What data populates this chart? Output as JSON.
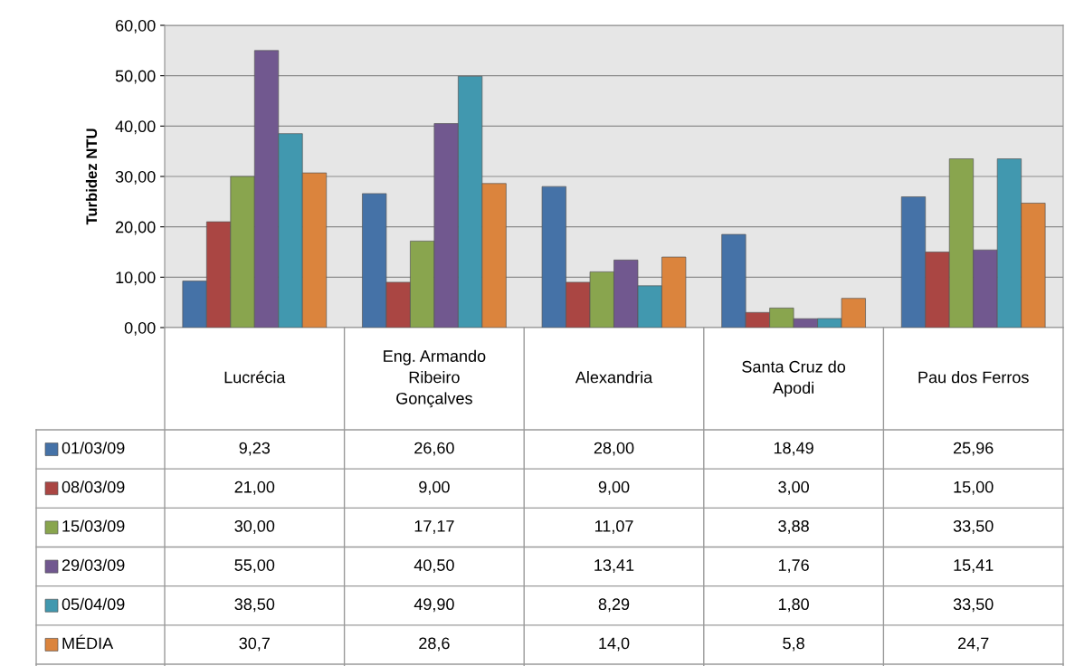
{
  "chart_data": {
    "type": "bar",
    "ylabel": "Turbidez NTU",
    "categories": [
      "Lucrécia",
      "Eng. Armando\nRibeiro\nGonçalves",
      "Alexandria",
      "Santa Cruz do\nApodi",
      "Pau dos Ferros"
    ],
    "series": [
      {
        "name": "01/03/09",
        "color": "#4572a7",
        "values": [
          9.23,
          26.6,
          28.0,
          18.49,
          25.96
        ],
        "value_labels": [
          "9,23",
          "26,60",
          "28,00",
          "18,49",
          "25,96"
        ]
      },
      {
        "name": "08/03/09",
        "color": "#aa4643",
        "values": [
          21.0,
          9.0,
          9.0,
          3.0,
          15.0
        ],
        "value_labels": [
          "21,00",
          "9,00",
          "9,00",
          "3,00",
          "15,00"
        ]
      },
      {
        "name": "15/03/09",
        "color": "#89a54e",
        "values": [
          30.0,
          17.17,
          11.07,
          3.88,
          33.5
        ],
        "value_labels": [
          "30,00",
          "17,17",
          "11,07",
          "3,88",
          "33,50"
        ]
      },
      {
        "name": "29/03/09",
        "color": "#71588f",
        "values": [
          55.0,
          40.5,
          13.41,
          1.76,
          15.41
        ],
        "value_labels": [
          "55,00",
          "40,50",
          "13,41",
          "1,76",
          "15,41"
        ]
      },
      {
        "name": "05/04/09",
        "color": "#4198af",
        "values": [
          38.5,
          49.9,
          8.29,
          1.8,
          33.5
        ],
        "value_labels": [
          "38,50",
          "49,90",
          "8,29",
          "1,80",
          "33,50"
        ]
      },
      {
        "name": "MÉDIA",
        "color": "#db843d",
        "values": [
          30.7,
          28.6,
          14.0,
          5.8,
          24.7
        ],
        "value_labels": [
          "30,7",
          "28,6",
          "14,0",
          "5,8",
          "24,7"
        ]
      }
    ],
    "ylim": [
      0,
      60
    ],
    "yticks": [
      {
        "value": 0,
        "label": "0,00"
      },
      {
        "value": 10,
        "label": "10,00"
      },
      {
        "value": 20,
        "label": "20,00"
      },
      {
        "value": 30,
        "label": "30,00"
      },
      {
        "value": 40,
        "label": "40,00"
      },
      {
        "value": 50,
        "label": "50,00"
      },
      {
        "value": 60,
        "label": "60,00"
      }
    ],
    "grid": "y",
    "legend": "bottom left"
  }
}
